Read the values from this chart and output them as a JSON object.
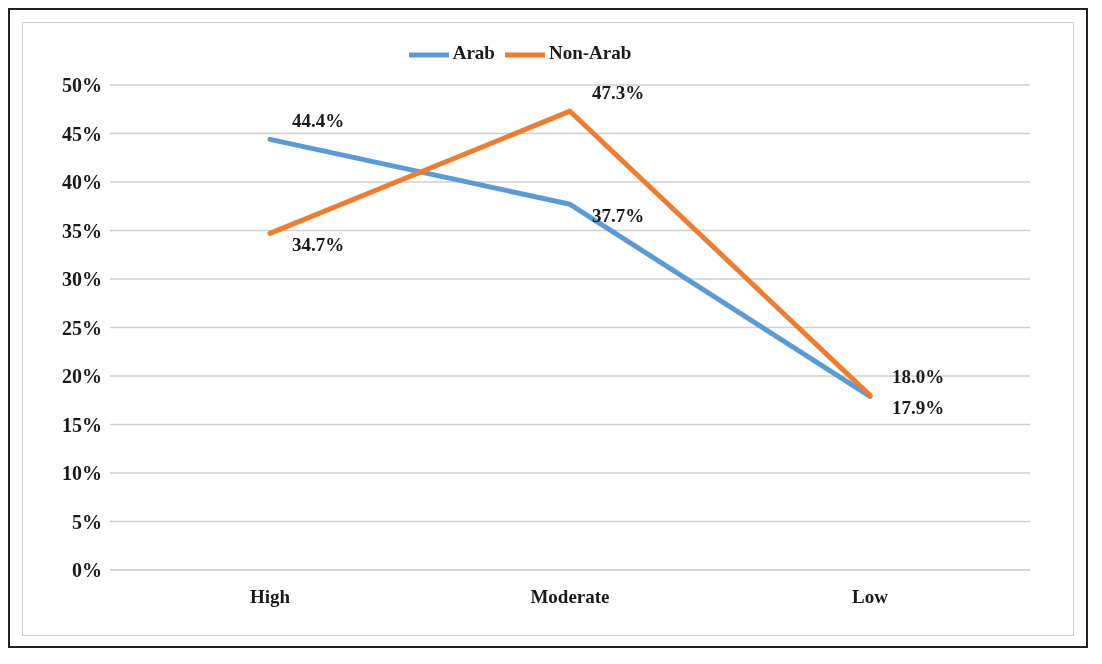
{
  "chart_data": {
    "type": "line",
    "categories": [
      "High",
      "Moderate",
      "Low"
    ],
    "series": [
      {
        "name": "Arab",
        "color": "#5b9bd5",
        "values": [
          44.4,
          37.7,
          17.9
        ],
        "value_labels": [
          "44.4%",
          "37.7%",
          "17.9%"
        ]
      },
      {
        "name": "Non-Arab",
        "color": "#ed7d31",
        "values": [
          34.7,
          47.3,
          18.0
        ],
        "value_labels": [
          "34.7%",
          "47.3%",
          "18.0%"
        ]
      }
    ],
    "ylim": [
      0,
      50
    ],
    "yticks": [
      {
        "value": 0,
        "label": "0%"
      },
      {
        "value": 5,
        "label": "5%"
      },
      {
        "value": 10,
        "label": "10%"
      },
      {
        "value": 15,
        "label": "15%"
      },
      {
        "value": 20,
        "label": "20%"
      },
      {
        "value": 25,
        "label": "25%"
      },
      {
        "value": 30,
        "label": "30%"
      },
      {
        "value": 35,
        "label": "35%"
      },
      {
        "value": 40,
        "label": "40%"
      },
      {
        "value": 45,
        "label": "45%"
      },
      {
        "value": 50,
        "label": "50%"
      }
    ],
    "grid": "y",
    "legend": "top",
    "marker": "none",
    "line_style": "solid"
  }
}
